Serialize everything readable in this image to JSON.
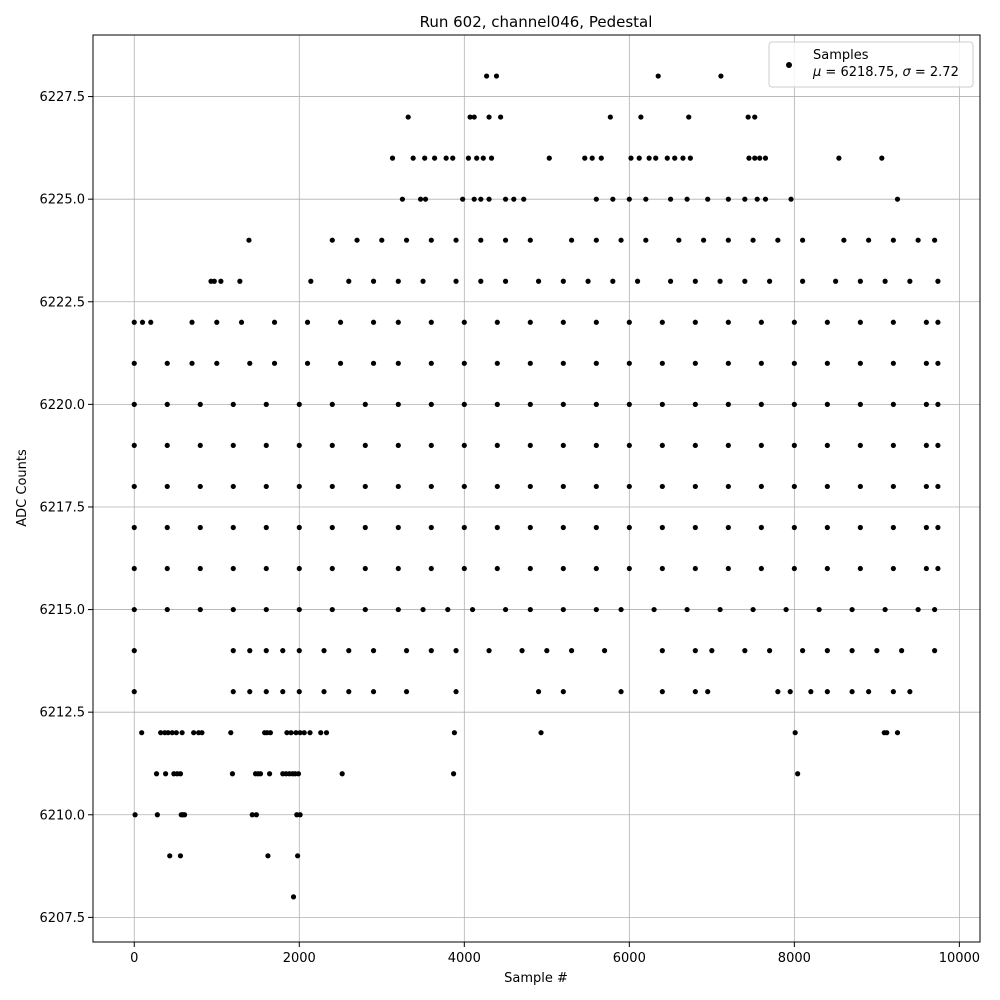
{
  "chart_data": {
    "type": "scatter",
    "title": "Run 602, channel046, Pedestal",
    "xlabel": "Sample #",
    "ylabel": "ADC Counts",
    "xlim": [
      -500,
      10250
    ],
    "ylim": [
      6206.9,
      6229.0
    ],
    "x_ticks": [
      0,
      2000,
      4000,
      6000,
      8000,
      10000
    ],
    "x_tick_labels": [
      "0",
      "2000",
      "4000",
      "6000",
      "8000",
      "10000"
    ],
    "y_ticks": [
      6207.5,
      6210.0,
      6212.5,
      6215.0,
      6217.5,
      6220.0,
      6222.5,
      6225.0,
      6227.5
    ],
    "y_tick_labels": [
      "6207.5",
      "6210.0",
      "6212.5",
      "6215.0",
      "6217.5",
      "6220.0",
      "6222.5",
      "6225.0",
      "6227.5"
    ],
    "grid": true,
    "marker_color": "#000000",
    "legend": {
      "placement": "top-right",
      "label": "Samples",
      "stats_mu": "6218.75",
      "stats_sigma": "2.72"
    },
    "series": [
      {
        "name": "Samples",
        "levels": [
          {
            "y": 6208,
            "x": [
              1930
            ]
          },
          {
            "y": 6209,
            "x": [
              430,
              560,
              1620,
              1980
            ]
          },
          {
            "y": 6210,
            "x": [
              10,
              280,
              570,
              590,
              610,
              1430,
              1480,
              1970,
              2010
            ]
          },
          {
            "y": 6211,
            "x": [
              270,
              380,
              480,
              520,
              560,
              1190,
              1470,
              1500,
              1530,
              1640,
              1800,
              1840,
              1880,
              1920,
              1950,
              1990,
              2520,
              3870,
              8040
            ]
          },
          {
            "y": 6212,
            "x": [
              90,
              320,
              370,
              410,
              460,
              510,
              580,
              720,
              780,
              820,
              1170,
              1580,
              1610,
              1650,
              1850,
              1900,
              1960,
              2010,
              2060,
              2130,
              2260,
              2330,
              3880,
              4930,
              8010,
              9090,
              9120,
              9250
            ]
          },
          {
            "y": 6213,
            "x": [
              0,
              1200,
              1400,
              1600,
              1800,
              2000,
              2300,
              2600,
              2900,
              3300,
              3900,
              4900,
              5200,
              5900,
              6400,
              6800,
              6950,
              7800,
              7950,
              8200,
              8400,
              8700,
              8900,
              9200,
              9400
            ]
          },
          {
            "y": 6214,
            "x": [
              0,
              1200,
              1400,
              1600,
              1800,
              2000,
              2300,
              2600,
              2900,
              3300,
              3600,
              3900,
              4300,
              4700,
              5000,
              5300,
              5700,
              6400,
              6800,
              7000,
              7400,
              7700,
              8100,
              8400,
              8700,
              9000,
              9300,
              9700
            ]
          },
          {
            "y": 6215,
            "x": [
              0,
              400,
              800,
              1200,
              1600,
              2000,
              2400,
              2800,
              3200,
              3500,
              3800,
              4100,
              4500,
              4800,
              5200,
              5600,
              5900,
              6300,
              6700,
              7100,
              7500,
              7900,
              8300,
              8700,
              9100,
              9500,
              9700
            ]
          },
          {
            "y": 6216,
            "x": [
              0,
              400,
              800,
              1200,
              1600,
              2000,
              2400,
              2800,
              3200,
              3600,
              4000,
              4400,
              4800,
              5200,
              5600,
              6000,
              6400,
              6800,
              7200,
              7600,
              8000,
              8400,
              8800,
              9200,
              9600,
              9740
            ]
          },
          {
            "y": 6217,
            "x": [
              0,
              400,
              800,
              1200,
              1600,
              2000,
              2400,
              2800,
              3200,
              3600,
              4000,
              4400,
              4800,
              5200,
              5600,
              6000,
              6400,
              6800,
              7200,
              7600,
              8000,
              8400,
              8800,
              9200,
              9600,
              9740
            ]
          },
          {
            "y": 6218,
            "x": [
              0,
              400,
              800,
              1200,
              1600,
              2000,
              2400,
              2800,
              3200,
              3600,
              4000,
              4400,
              4800,
              5200,
              5600,
              6000,
              6400,
              6800,
              7200,
              7600,
              8000,
              8400,
              8800,
              9200,
              9600,
              9740
            ]
          },
          {
            "y": 6219,
            "x": [
              0,
              400,
              800,
              1200,
              1600,
              2000,
              2400,
              2800,
              3200,
              3600,
              4000,
              4400,
              4800,
              5200,
              5600,
              6000,
              6400,
              6800,
              7200,
              7600,
              8000,
              8400,
              8800,
              9200,
              9600,
              9740
            ]
          },
          {
            "y": 6220,
            "x": [
              0,
              400,
              800,
              1200,
              1600,
              2000,
              2400,
              2800,
              3200,
              3600,
              4000,
              4400,
              4800,
              5200,
              5600,
              6000,
              6400,
              6800,
              7200,
              7600,
              8000,
              8400,
              8800,
              9200,
              9600,
              9740
            ]
          },
          {
            "y": 6221,
            "x": [
              0,
              400,
              700,
              1000,
              1400,
              1700,
              2100,
              2500,
              2900,
              3200,
              3600,
              4000,
              4400,
              4800,
              5200,
              5600,
              6000,
              6400,
              6800,
              7200,
              7600,
              8000,
              8400,
              8800,
              9200,
              9600,
              9740
            ]
          },
          {
            "y": 6222,
            "x": [
              0,
              100,
              200,
              700,
              1000,
              1300,
              1700,
              2100,
              2500,
              2900,
              3200,
              3600,
              4000,
              4400,
              4800,
              5200,
              5600,
              6000,
              6400,
              6800,
              7200,
              7600,
              8000,
              8400,
              8800,
              9200,
              9600,
              9740
            ]
          },
          {
            "y": 6223,
            "x": [
              930,
              970,
              1050,
              1280,
              2140,
              2600,
              2900,
              3200,
              3500,
              3900,
              4200,
              4500,
              4900,
              5200,
              5500,
              5800,
              6100,
              6500,
              6800,
              7100,
              7400,
              7700,
              8100,
              8500,
              8800,
              9100,
              9400,
              9740
            ]
          },
          {
            "y": 6224,
            "x": [
              1390,
              2400,
              2700,
              3000,
              3300,
              3600,
              3900,
              4200,
              4500,
              4800,
              5300,
              5600,
              5900,
              6200,
              6600,
              6900,
              7200,
              7500,
              7800,
              8100,
              8600,
              8900,
              9200,
              9500,
              9700
            ]
          },
          {
            "y": 6225,
            "x": [
              3250,
              3470,
              3530,
              3980,
              4120,
              4200,
              4300,
              4500,
              4600,
              4720,
              5600,
              5800,
              6000,
              6200,
              6500,
              6700,
              6950,
              7200,
              7400,
              7550,
              7650,
              7960,
              9250
            ]
          },
          {
            "y": 6226,
            "x": [
              3130,
              3380,
              3520,
              3640,
              3780,
              3860,
              4050,
              4150,
              4230,
              4330,
              5030,
              5460,
              5550,
              5660,
              6020,
              6120,
              6240,
              6320,
              6460,
              6550,
              6650,
              6740,
              7450,
              7520,
              7580,
              7650,
              8540,
              9060
            ]
          },
          {
            "y": 6227,
            "x": [
              3320,
              4070,
              4120,
              4300,
              4440,
              5770,
              6140,
              6720,
              7440,
              7520
            ]
          },
          {
            "y": 6228,
            "x": [
              4270,
              4390,
              6350,
              7110
            ]
          }
        ]
      }
    ]
  }
}
